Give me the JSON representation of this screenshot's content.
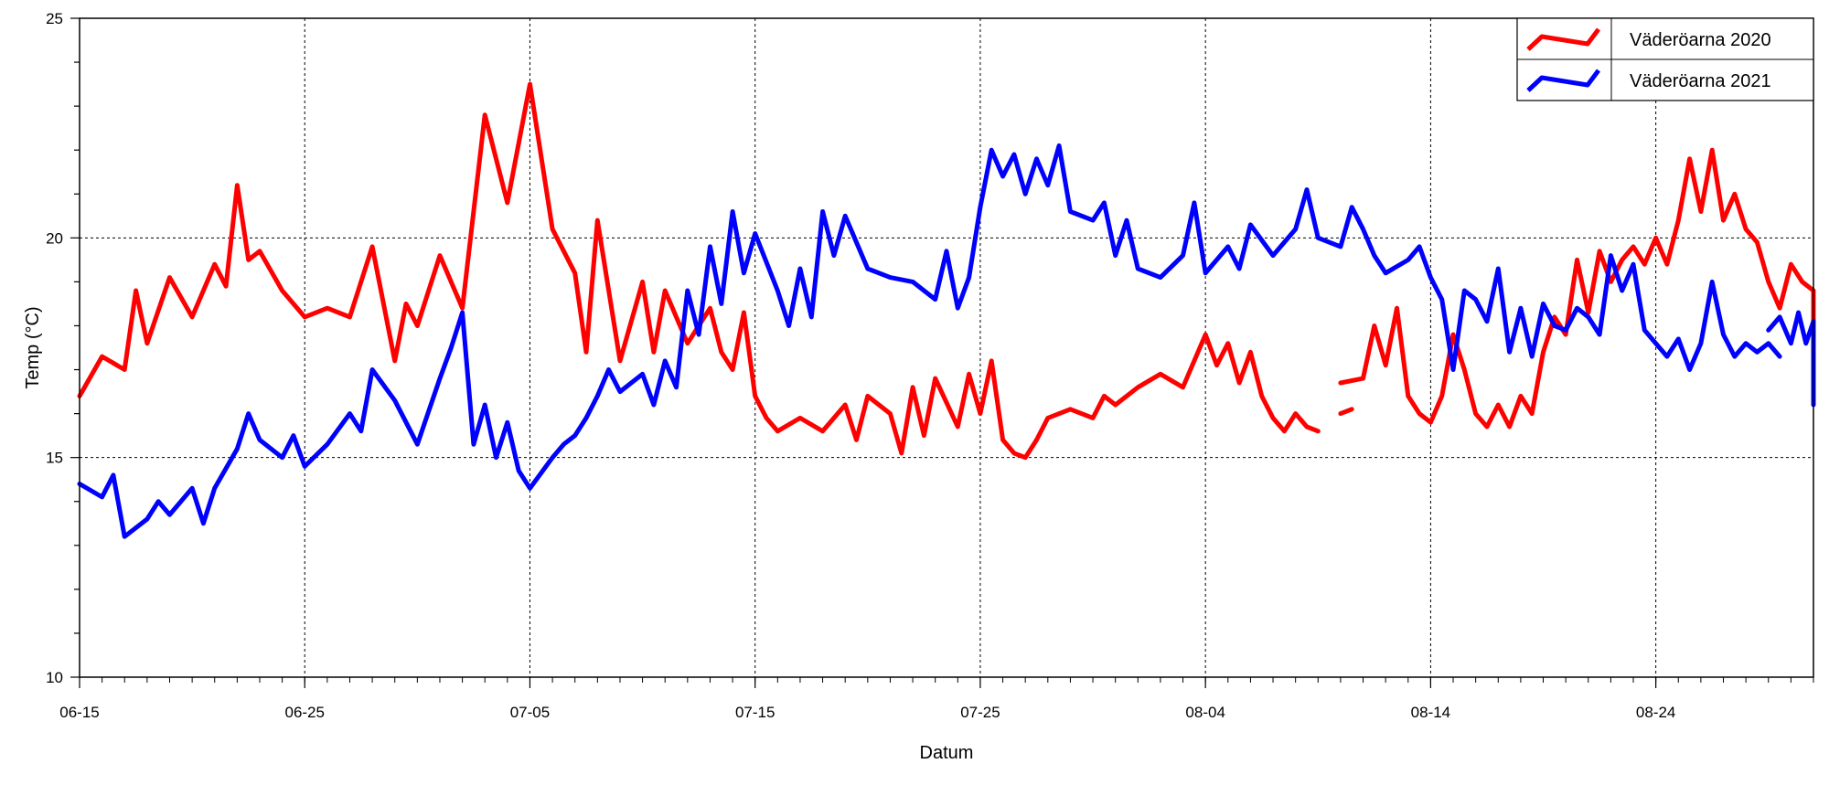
{
  "chart_data": {
    "type": "line",
    "title": "",
    "xlabel": "Datum",
    "ylabel": "Temp (°C)",
    "ylim": [
      10,
      25
    ],
    "yticks": [
      10,
      15,
      20,
      25
    ],
    "xlim": [
      "06-15",
      "08-31"
    ],
    "xtick_labels": [
      "06-15",
      "06-25",
      "07-05",
      "07-15",
      "07-25",
      "08-04",
      "08-14",
      "08-24"
    ],
    "grid": "dashed, major ticks",
    "legend_position": "top-right",
    "series": [
      {
        "name": "Väderöarna 2020",
        "color": "#ff0000",
        "points": [
          [
            "06-15",
            16.4
          ],
          [
            "06-16",
            17.3
          ],
          [
            "06-17",
            17.0
          ],
          [
            "06-17",
            18.8
          ],
          [
            "06-18",
            17.6
          ],
          [
            "06-19",
            19.1
          ],
          [
            "06-20",
            18.2
          ],
          [
            "06-21",
            19.4
          ],
          [
            "06-21",
            18.9
          ],
          [
            "06-22",
            21.2
          ],
          [
            "06-22",
            19.5
          ],
          [
            "06-23",
            19.7
          ],
          [
            "06-24",
            18.8
          ],
          [
            "06-25",
            18.2
          ],
          [
            "06-26",
            18.4
          ],
          [
            "06-27",
            18.2
          ],
          [
            "06-28",
            19.8
          ],
          [
            "06-29",
            17.2
          ],
          [
            "06-29",
            18.5
          ],
          [
            "06-30",
            18.0
          ],
          [
            "07-01",
            19.6
          ],
          [
            "07-02",
            18.4
          ],
          [
            "07-03",
            22.8
          ],
          [
            "07-04",
            20.8
          ],
          [
            "07-05",
            23.5
          ],
          [
            "07-06",
            20.2
          ],
          [
            "07-07",
            19.2
          ],
          [
            "07-07",
            17.4
          ],
          [
            "07-08",
            20.4
          ],
          [
            "07-09",
            17.2
          ],
          [
            "07-10",
            19.0
          ],
          [
            "07-10",
            17.4
          ],
          [
            "07-11",
            18.8
          ],
          [
            "07-12",
            17.6
          ],
          [
            "07-13",
            18.4
          ],
          [
            "07-13",
            17.4
          ],
          [
            "07-14",
            17.0
          ],
          [
            "07-14",
            18.3
          ],
          [
            "07-15",
            16.4
          ],
          [
            "07-15",
            15.9
          ],
          [
            "07-16",
            15.6
          ],
          [
            "07-17",
            15.9
          ],
          [
            "07-18",
            15.6
          ],
          [
            "07-19",
            16.2
          ],
          [
            "07-19",
            15.4
          ],
          [
            "07-20",
            16.4
          ],
          [
            "07-21",
            16.0
          ],
          [
            "07-21",
            15.1
          ],
          [
            "07-22",
            16.6
          ],
          [
            "07-22",
            15.5
          ],
          [
            "07-23",
            16.8
          ],
          [
            "07-24",
            15.7
          ],
          [
            "07-24",
            16.9
          ],
          [
            "07-25",
            16.0
          ],
          [
            "07-25",
            17.2
          ],
          [
            "07-26",
            15.4
          ],
          [
            "07-26",
            15.1
          ],
          [
            "07-27",
            15.0
          ],
          [
            "07-27",
            15.4
          ],
          [
            "07-28",
            15.9
          ],
          [
            "07-29",
            16.1
          ],
          [
            "07-30",
            15.9
          ],
          [
            "07-30",
            16.4
          ],
          [
            "07-31",
            16.2
          ],
          [
            "08-01",
            16.6
          ],
          [
            "08-02",
            16.9
          ],
          [
            "08-03",
            16.6
          ],
          [
            "08-04",
            17.8
          ],
          [
            "08-04",
            17.1
          ],
          [
            "08-05",
            17.6
          ],
          [
            "08-05",
            16.7
          ],
          [
            "08-06",
            17.4
          ],
          [
            "08-06",
            16.4
          ],
          [
            "08-07",
            15.9
          ],
          [
            "08-07",
            15.6
          ],
          [
            "08-08",
            16.0
          ],
          [
            "08-08",
            15.7
          ],
          [
            "08-09",
            15.6
          ],
          null,
          [
            "08-10",
            16.0
          ],
          [
            "08-10",
            16.1
          ],
          null,
          [
            "08-10",
            16.7
          ],
          [
            "08-11",
            16.8
          ],
          [
            "08-11",
            18.0
          ],
          [
            "08-12",
            17.1
          ],
          [
            "08-12",
            18.4
          ],
          [
            "08-13",
            16.4
          ],
          [
            "08-13",
            16.0
          ],
          [
            "08-14",
            15.8
          ],
          [
            "08-14",
            16.4
          ],
          [
            "08-15",
            17.8
          ],
          [
            "08-15",
            17.0
          ],
          [
            "08-16",
            16.0
          ],
          [
            "08-16",
            15.7
          ],
          [
            "08-17",
            16.2
          ],
          [
            "08-17",
            15.7
          ],
          [
            "08-18",
            16.4
          ],
          [
            "08-18",
            16.0
          ],
          [
            "08-19",
            17.4
          ],
          [
            "08-19",
            18.2
          ],
          [
            "08-20",
            17.8
          ],
          [
            "08-20",
            19.5
          ],
          [
            "08-21",
            18.3
          ],
          [
            "08-21",
            19.7
          ],
          [
            "08-22",
            19.0
          ],
          [
            "08-22",
            19.5
          ],
          [
            "08-23",
            19.8
          ],
          [
            "08-23",
            19.4
          ],
          [
            "08-24",
            20.0
          ],
          [
            "08-24",
            19.4
          ],
          [
            "08-25",
            20.4
          ],
          [
            "08-25",
            21.8
          ],
          [
            "08-26",
            20.6
          ],
          [
            "08-26",
            22.0
          ],
          [
            "08-27",
            20.4
          ],
          [
            "08-27",
            21.0
          ],
          [
            "08-28",
            20.2
          ],
          [
            "08-28",
            19.9
          ],
          [
            "08-29",
            19.0
          ],
          [
            "08-29",
            18.4
          ],
          [
            "08-30",
            19.4
          ],
          [
            "08-30",
            19.0
          ],
          [
            "08-31",
            18.8
          ],
          [
            "08-31",
            17.8
          ],
          [
            "08-31",
            17.2
          ],
          [
            "08-31",
            18.6
          ],
          [
            "08-31",
            17.0
          ],
          [
            "08-31",
            17.6
          ]
        ]
      },
      {
        "name": "Väderöarna 2021",
        "color": "#0000ff",
        "points": [
          [
            "06-15",
            14.4
          ],
          [
            "06-16",
            14.1
          ],
          [
            "06-16",
            14.6
          ],
          [
            "06-17",
            13.2
          ],
          [
            "06-18",
            13.6
          ],
          [
            "06-18",
            14.0
          ],
          [
            "06-19",
            13.7
          ],
          [
            "06-20",
            14.3
          ],
          [
            "06-20",
            13.5
          ],
          [
            "06-21",
            14.3
          ],
          [
            "06-22",
            15.2
          ],
          [
            "06-22",
            16.0
          ],
          [
            "06-23",
            15.4
          ],
          [
            "06-24",
            15.0
          ],
          [
            "06-24",
            15.5
          ],
          [
            "06-25",
            14.8
          ],
          [
            "06-26",
            15.3
          ],
          [
            "06-27",
            16.0
          ],
          [
            "06-27",
            15.6
          ],
          [
            "06-28",
            17.0
          ],
          [
            "06-29",
            16.3
          ],
          [
            "06-30",
            15.3
          ],
          [
            "07-01",
            16.8
          ],
          [
            "07-01",
            17.5
          ],
          [
            "07-02",
            18.3
          ],
          [
            "07-02",
            15.3
          ],
          [
            "07-03",
            16.2
          ],
          [
            "07-03",
            15.0
          ],
          [
            "07-04",
            15.8
          ],
          [
            "07-04",
            14.7
          ],
          [
            "07-05",
            14.3
          ],
          [
            "07-06",
            15.0
          ],
          [
            "07-06",
            15.3
          ],
          [
            "07-07",
            15.5
          ],
          [
            "07-07",
            15.9
          ],
          [
            "07-08",
            16.4
          ],
          [
            "07-08",
            17.0
          ],
          [
            "07-09",
            16.5
          ],
          [
            "07-10",
            16.9
          ],
          [
            "07-10",
            16.2
          ],
          [
            "07-11",
            17.2
          ],
          [
            "07-11",
            16.6
          ],
          [
            "07-12",
            18.8
          ],
          [
            "07-12",
            17.8
          ],
          [
            "07-13",
            19.8
          ],
          [
            "07-13",
            18.5
          ],
          [
            "07-14",
            20.6
          ],
          [
            "07-14",
            19.2
          ],
          [
            "07-15",
            20.1
          ],
          [
            "07-16",
            18.8
          ],
          [
            "07-16",
            18.0
          ],
          [
            "07-17",
            19.3
          ],
          [
            "07-17",
            18.2
          ],
          [
            "07-18",
            20.6
          ],
          [
            "07-18",
            19.6
          ],
          [
            "07-19",
            20.5
          ],
          [
            "07-20",
            19.3
          ],
          [
            "07-21",
            19.1
          ],
          [
            "07-22",
            19.0
          ],
          [
            "07-23",
            18.6
          ],
          [
            "07-23",
            19.7
          ],
          [
            "07-24",
            18.4
          ],
          [
            "07-24",
            19.1
          ],
          [
            "07-25",
            20.7
          ],
          [
            "07-25",
            22.0
          ],
          [
            "07-26",
            21.4
          ],
          [
            "07-26",
            21.9
          ],
          [
            "07-27",
            21.0
          ],
          [
            "07-27",
            21.8
          ],
          [
            "07-28",
            21.2
          ],
          [
            "07-28",
            22.1
          ],
          [
            "07-29",
            20.6
          ],
          [
            "07-30",
            20.4
          ],
          [
            "07-30",
            20.8
          ],
          [
            "07-31",
            19.6
          ],
          [
            "07-31",
            20.4
          ],
          [
            "08-01",
            19.3
          ],
          [
            "08-02",
            19.1
          ],
          [
            "08-03",
            19.6
          ],
          [
            "08-03",
            20.8
          ],
          [
            "08-04",
            19.2
          ],
          [
            "08-05",
            19.8
          ],
          [
            "08-05",
            19.3
          ],
          [
            "08-06",
            20.3
          ],
          [
            "08-07",
            19.6
          ],
          [
            "08-08",
            20.2
          ],
          [
            "08-08",
            21.1
          ],
          [
            "08-09",
            20.0
          ],
          [
            "08-10",
            19.8
          ],
          [
            "08-10",
            20.7
          ],
          [
            "08-11",
            20.2
          ],
          [
            "08-11",
            19.6
          ],
          [
            "08-12",
            19.2
          ],
          [
            "08-13",
            19.5
          ],
          [
            "08-13",
            19.8
          ],
          [
            "08-14",
            19.1
          ],
          [
            "08-14",
            18.6
          ],
          [
            "08-15",
            17.0
          ],
          [
            "08-15",
            18.8
          ],
          [
            "08-16",
            18.6
          ],
          [
            "08-16",
            18.1
          ],
          [
            "08-17",
            19.3
          ],
          [
            "08-17",
            17.4
          ],
          [
            "08-18",
            18.4
          ],
          [
            "08-18",
            17.3
          ],
          [
            "08-19",
            18.5
          ],
          [
            "08-19",
            18.0
          ],
          [
            "08-20",
            17.9
          ],
          [
            "08-20",
            18.4
          ],
          [
            "08-21",
            18.2
          ],
          [
            "08-21",
            17.8
          ],
          [
            "08-22",
            19.6
          ],
          [
            "08-22",
            18.8
          ],
          [
            "08-23",
            19.4
          ],
          [
            "08-23",
            17.9
          ],
          [
            "08-24",
            17.6
          ],
          [
            "08-24",
            17.3
          ],
          [
            "08-25",
            17.7
          ],
          [
            "08-25",
            17.0
          ],
          [
            "08-26",
            17.6
          ],
          [
            "08-26",
            19.0
          ],
          [
            "08-27",
            17.8
          ],
          [
            "08-27",
            17.3
          ],
          [
            "08-28",
            17.6
          ],
          [
            "08-28",
            17.4
          ],
          [
            "08-29",
            17.6
          ],
          [
            "08-29",
            17.3
          ],
          null,
          [
            "08-29",
            17.9
          ],
          [
            "08-29",
            18.2
          ],
          [
            "08-30",
            17.6
          ],
          [
            "08-30",
            18.3
          ],
          [
            "08-30",
            17.6
          ],
          [
            "08-31",
            18.1
          ],
          [
            "08-31",
            17.8
          ],
          [
            "08-31",
            17.5
          ],
          [
            "08-31",
            17.0
          ],
          [
            "08-31",
            16.6
          ],
          [
            "08-31",
            16.4
          ],
          [
            "08-31",
            16.2
          ],
          [
            "08-31",
            17.2
          ]
        ]
      }
    ]
  }
}
